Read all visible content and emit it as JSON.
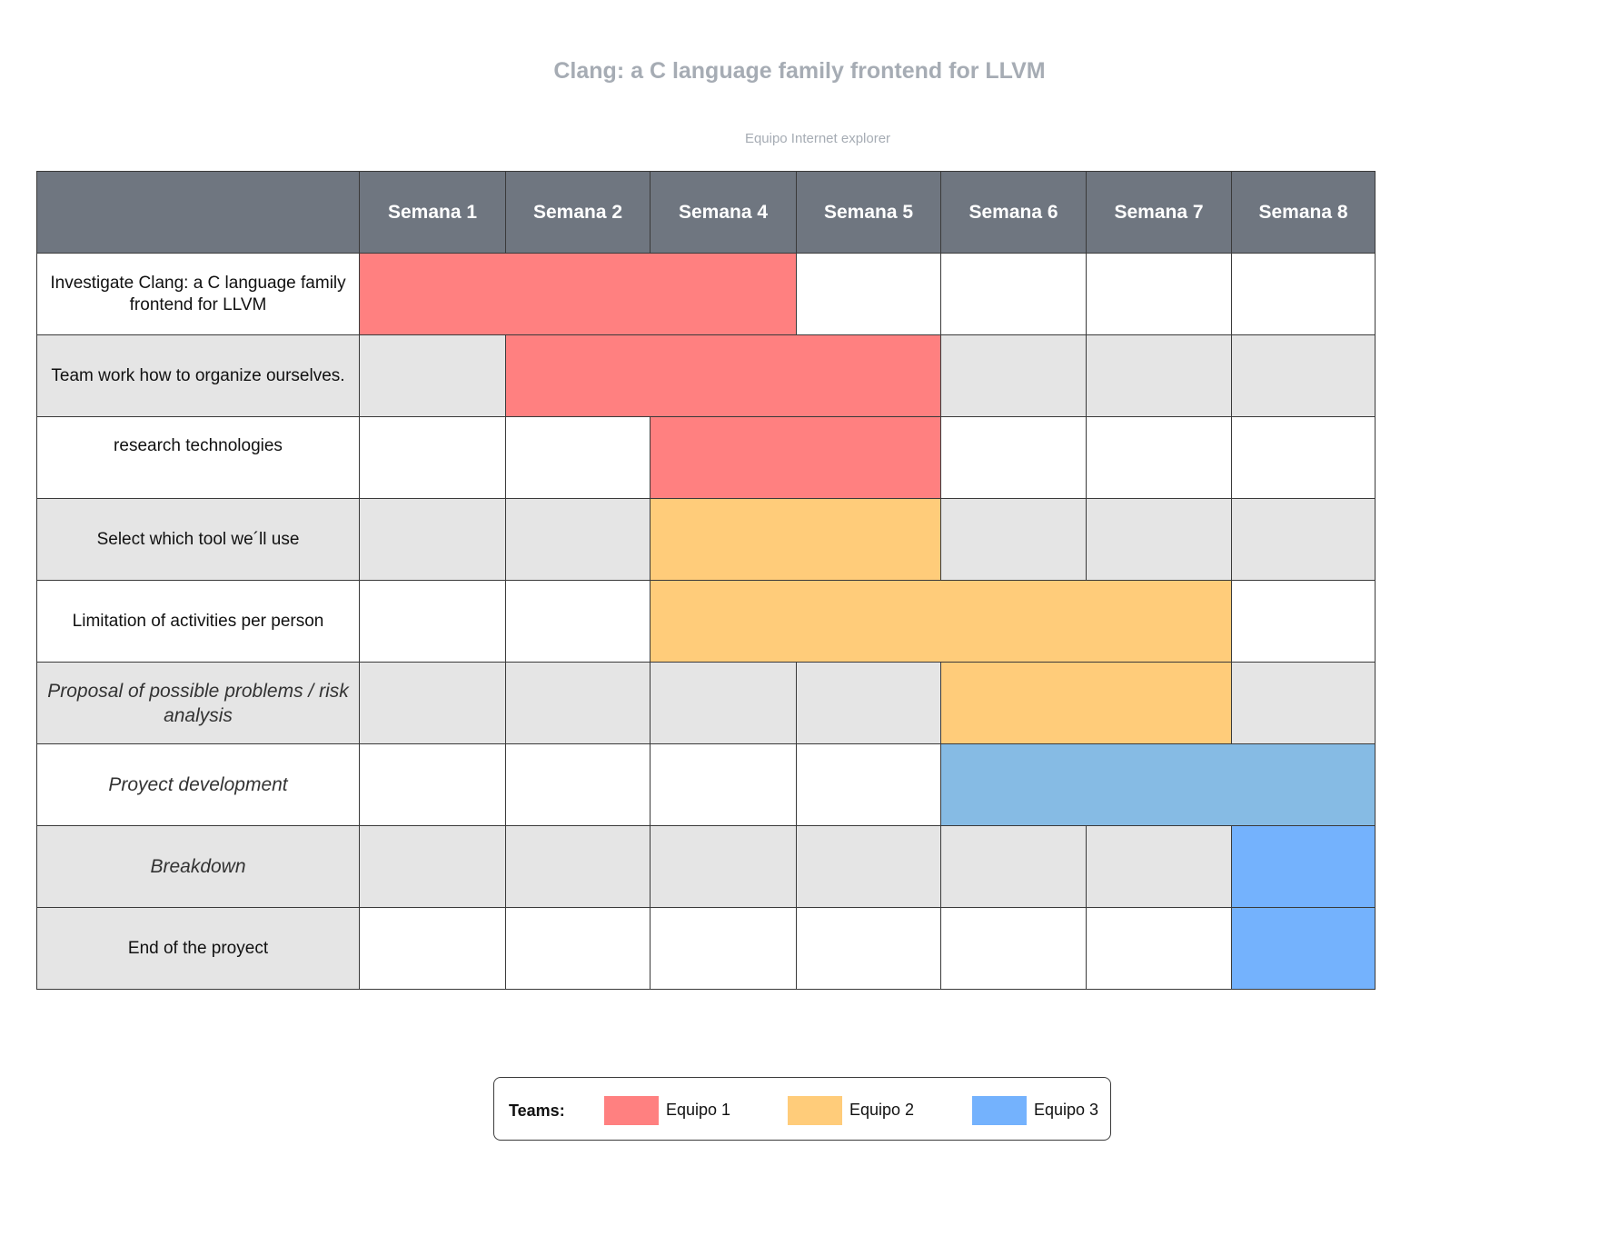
{
  "title": "Clang: a C language family frontend for LLVM",
  "subtitle": "Equipo Internet explorer",
  "header": {
    "corner": "",
    "weeks": [
      "Semana 1",
      "Semana 2",
      "Semana 4",
      "Semana 5",
      "Semana 6",
      "Semana 7",
      "Semana 8"
    ]
  },
  "tasks": [
    {
      "label": "Investigate Clang: a C language family frontend for LLVM",
      "team": "Equipo 1",
      "start_week": "Semana 1",
      "end_week": "Semana 4"
    },
    {
      "label": "Team work how to organize ourselves.",
      "team": "Equipo 1",
      "start_week": "Semana 2",
      "end_week": "Semana 5"
    },
    {
      "label": "research technologies",
      "team": "Equipo 1",
      "start_week": "Semana 4",
      "end_week": "Semana 5"
    },
    {
      "label": "Select which tool we´ll use",
      "team": "Equipo 2",
      "start_week": "Semana 4",
      "end_week": "Semana 5"
    },
    {
      "label": "Limitation of activities per person",
      "team": "Equipo 2",
      "start_week": "Semana 4",
      "end_week": "Semana 7"
    },
    {
      "label": "Proposal of possible problems / risk analysis",
      "team": "Equipo 2",
      "start_week": "Semana 6",
      "end_week": "Semana 7"
    },
    {
      "label": "Proyect development",
      "team": "Equipo 3",
      "start_week": "Semana 6",
      "end_week": "Semana 8"
    },
    {
      "label": "Breakdown",
      "team": "Equipo 3",
      "start_week": "Semana 8",
      "end_week": "Semana 8"
    },
    {
      "label": "End of the proyect",
      "team": "Equipo 3",
      "start_week": "Semana 8",
      "end_week": "Semana 8"
    }
  ],
  "legend": {
    "label": "Teams:",
    "items": [
      {
        "name": "Equipo 1",
        "color": "#ff8080"
      },
      {
        "name": "Equipo 2",
        "color": "#ffcc7a"
      },
      {
        "name": "Equipo 3",
        "color": "#74b2fd"
      }
    ]
  }
}
